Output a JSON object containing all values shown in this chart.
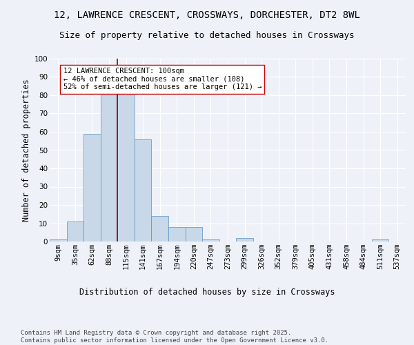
{
  "title_line1": "12, LAWRENCE CRESCENT, CROSSWAYS, DORCHESTER, DT2 8WL",
  "title_line2": "Size of property relative to detached houses in Crossways",
  "xlabel": "Distribution of detached houses by size in Crossways",
  "ylabel": "Number of detached properties",
  "bin_labels": [
    "9sqm",
    "35sqm",
    "62sqm",
    "88sqm",
    "115sqm",
    "141sqm",
    "167sqm",
    "194sqm",
    "220sqm",
    "247sqm",
    "273sqm",
    "299sqm",
    "326sqm",
    "352sqm",
    "379sqm",
    "405sqm",
    "431sqm",
    "458sqm",
    "484sqm",
    "511sqm",
    "537sqm"
  ],
  "bar_heights": [
    1,
    11,
    59,
    82,
    82,
    56,
    14,
    8,
    8,
    1,
    0,
    2,
    0,
    0,
    0,
    0,
    0,
    0,
    0,
    1,
    0
  ],
  "bar_color": "#c8d8e8",
  "bar_edgecolor": "#5590c0",
  "vline_x": 3.5,
  "vline_color": "#8b0000",
  "annotation_text": "12 LAWRENCE CRESCENT: 100sqm\n← 46% of detached houses are smaller (108)\n52% of semi-detached houses are larger (121) →",
  "annotation_box_color": "#ffffff",
  "annotation_box_edgecolor": "#cc0000",
  "annotation_fontsize": 7.5,
  "ylim": [
    0,
    100
  ],
  "yticks": [
    0,
    10,
    20,
    30,
    40,
    50,
    60,
    70,
    80,
    90,
    100
  ],
  "footnote": "Contains HM Land Registry data © Crown copyright and database right 2025.\nContains public sector information licensed under the Open Government Licence v3.0.",
  "bg_color": "#eef2f8",
  "plot_bg_color": "#eef2f8",
  "grid_color": "#ffffff",
  "title_fontsize": 10,
  "subtitle_fontsize": 9,
  "axis_label_fontsize": 8.5,
  "tick_fontsize": 7.5,
  "footnote_fontsize": 6.5
}
